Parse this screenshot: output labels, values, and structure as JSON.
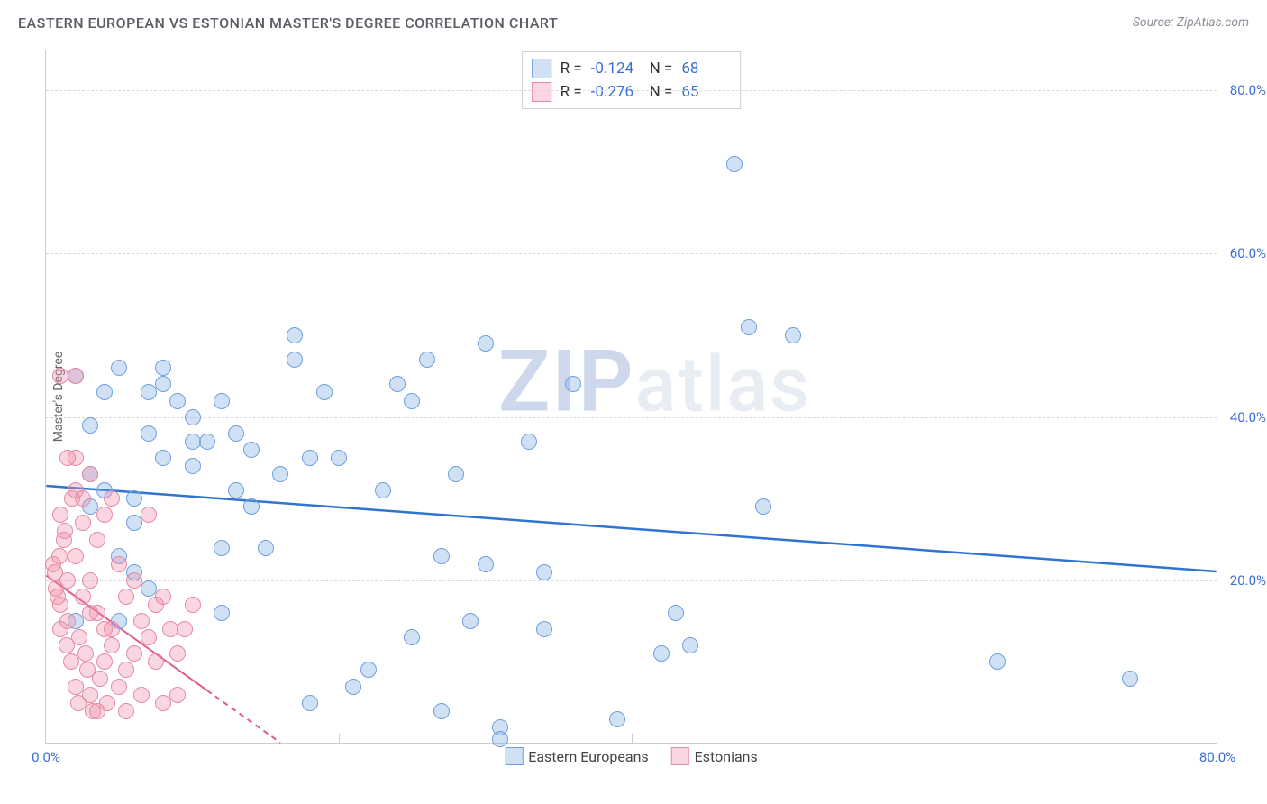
{
  "header": {
    "title": "EASTERN EUROPEAN VS ESTONIAN MASTER'S DEGREE CORRELATION CHART",
    "source_label": "Source: ",
    "source_name": "ZipAtlas.com"
  },
  "watermark": {
    "part1": "ZIP",
    "part2": "atlas"
  },
  "chart": {
    "type": "scatter",
    "y_axis_label": "Master's Degree",
    "xlim": [
      0,
      80
    ],
    "ylim": [
      0,
      85
    ],
    "x_ticks": [
      0,
      20,
      40,
      60,
      80
    ],
    "y_ticks": [
      20,
      40,
      60,
      80
    ],
    "x_tick_labels": [
      "0.0%",
      "",
      "",
      "",
      "80.0%"
    ],
    "y_tick_labels": [
      "20.0%",
      "40.0%",
      "60.0%",
      "80.0%"
    ],
    "grid_color": "#d8d8d8",
    "tick_label_color": "#3b6fd6",
    "point_radius": 9,
    "series": [
      {
        "name": "Eastern Europeans",
        "fill": "rgba(120,170,230,0.35)",
        "stroke": "#6fa0dd",
        "trend": {
          "x1": 0,
          "y1": 31.5,
          "x2": 80,
          "y2": 21.0,
          "color": "#2f74d0",
          "width": 2.5,
          "dash": null
        },
        "R": "-0.124",
        "N": "68",
        "points": [
          [
            2,
            15
          ],
          [
            3,
            29
          ],
          [
            3,
            33
          ],
          [
            3,
            39
          ],
          [
            4,
            43
          ],
          [
            5,
            46
          ],
          [
            5,
            23
          ],
          [
            6,
            21
          ],
          [
            6,
            30
          ],
          [
            7,
            38
          ],
          [
            7,
            19
          ],
          [
            8,
            44
          ],
          [
            8,
            46
          ],
          [
            8,
            35
          ],
          [
            9,
            42
          ],
          [
            10,
            37
          ],
          [
            10,
            40
          ],
          [
            10,
            34
          ],
          [
            11,
            37
          ],
          [
            12,
            24
          ],
          [
            12,
            16
          ],
          [
            13,
            31
          ],
          [
            13,
            38
          ],
          [
            14,
            36
          ],
          [
            15,
            24
          ],
          [
            16,
            33
          ],
          [
            17,
            50
          ],
          [
            17,
            47
          ],
          [
            18,
            35
          ],
          [
            19,
            43
          ],
          [
            20,
            35
          ],
          [
            21,
            7
          ],
          [
            22,
            9
          ],
          [
            23,
            31
          ],
          [
            24,
            44
          ],
          [
            25,
            13
          ],
          [
            26,
            47
          ],
          [
            27,
            4
          ],
          [
            27,
            23
          ],
          [
            28,
            33
          ],
          [
            29,
            15
          ],
          [
            30,
            22
          ],
          [
            30,
            49
          ],
          [
            31,
            2
          ],
          [
            31,
            0.5
          ],
          [
            33,
            37
          ],
          [
            34,
            14
          ],
          [
            36,
            44
          ],
          [
            42,
            11
          ],
          [
            43,
            16
          ],
          [
            44,
            12
          ],
          [
            47,
            71
          ],
          [
            48,
            51
          ],
          [
            49,
            29
          ],
          [
            51,
            50
          ],
          [
            65,
            10
          ],
          [
            74,
            8
          ],
          [
            2,
            45
          ],
          [
            4,
            31
          ],
          [
            5,
            15
          ],
          [
            6,
            27
          ],
          [
            7,
            43
          ],
          [
            12,
            42
          ],
          [
            14,
            29
          ],
          [
            18,
            5
          ],
          [
            25,
            42
          ],
          [
            34,
            21
          ],
          [
            39,
            3
          ]
        ]
      },
      {
        "name": "Estonians",
        "fill": "rgba(240,140,165,0.35)",
        "stroke": "#e28aa5",
        "trend": {
          "x1": 0,
          "y1": 20.5,
          "x2": 16,
          "y2": 0,
          "color": "#e05a8a",
          "width": 2,
          "dash": "6 5",
          "solid_until_x": 11
        },
        "R": "-0.276",
        "N": "65",
        "points": [
          [
            0.5,
            22
          ],
          [
            0.6,
            21
          ],
          [
            0.7,
            19
          ],
          [
            0.8,
            18
          ],
          [
            0.9,
            23
          ],
          [
            1,
            17
          ],
          [
            1,
            28
          ],
          [
            1,
            14
          ],
          [
            1.2,
            25
          ],
          [
            1.3,
            26
          ],
          [
            1.4,
            12
          ],
          [
            1.5,
            20
          ],
          [
            1.5,
            15
          ],
          [
            1.7,
            10
          ],
          [
            1.8,
            30
          ],
          [
            2,
            45
          ],
          [
            2,
            35
          ],
          [
            2,
            23
          ],
          [
            2,
            7
          ],
          [
            2.2,
            5
          ],
          [
            2.3,
            13
          ],
          [
            2.5,
            27
          ],
          [
            2.5,
            18
          ],
          [
            2.7,
            11
          ],
          [
            2.8,
            9
          ],
          [
            3,
            33
          ],
          [
            3,
            20
          ],
          [
            3,
            6
          ],
          [
            3.2,
            4
          ],
          [
            3.5,
            16
          ],
          [
            3.5,
            25
          ],
          [
            3.7,
            8
          ],
          [
            4,
            28
          ],
          [
            4,
            14
          ],
          [
            4,
            10
          ],
          [
            4.2,
            5
          ],
          [
            4.5,
            30
          ],
          [
            4.5,
            12
          ],
          [
            5,
            7
          ],
          [
            5,
            22
          ],
          [
            5.5,
            18
          ],
          [
            5.5,
            9
          ],
          [
            6,
            20
          ],
          [
            6,
            11
          ],
          [
            6.5,
            6
          ],
          [
            7,
            28
          ],
          [
            7,
            13
          ],
          [
            7.5,
            10
          ],
          [
            8,
            18
          ],
          [
            8,
            5
          ],
          [
            8.5,
            14
          ],
          [
            9,
            11
          ],
          [
            9.5,
            14
          ],
          [
            10,
            17
          ],
          [
            1,
            45
          ],
          [
            1.5,
            35
          ],
          [
            2,
            31
          ],
          [
            2.5,
            30
          ],
          [
            3,
            16
          ],
          [
            3.5,
            4
          ],
          [
            4.5,
            14
          ],
          [
            5.5,
            4
          ],
          [
            6.5,
            15
          ],
          [
            7.5,
            17
          ],
          [
            9,
            6
          ]
        ]
      }
    ],
    "stat_legend_labels": {
      "R": "R =",
      "N": "N ="
    },
    "bottom_legend_labels": [
      "Eastern Europeans",
      "Estonians"
    ]
  }
}
